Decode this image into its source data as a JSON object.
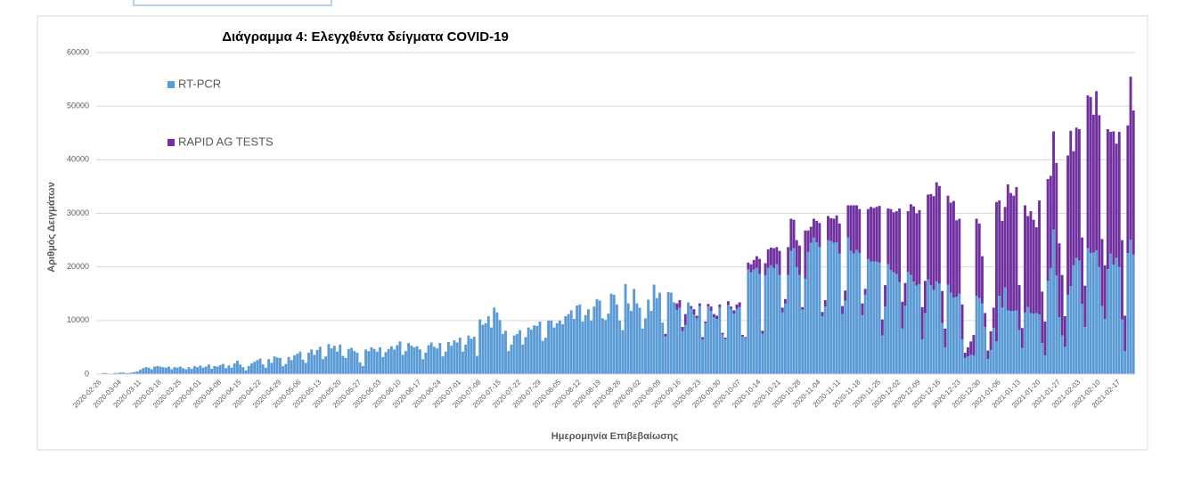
{
  "chart_data": {
    "type": "stacked_bar",
    "title": "Διάγραμμα 4: Ελεγχθέντα δείγματα COVID-19",
    "y_label": "Αριθμός Δειγμάτων",
    "x_label": "Ημερομηνία Επιβεβαίωσης",
    "ylim": [
      0,
      60000
    ],
    "yticks": [
      0,
      10000,
      20000,
      30000,
      40000,
      50000,
      60000
    ],
    "grid": true,
    "legend": "top-left",
    "categories": [
      "2020-02-26",
      null,
      null,
      null,
      null,
      null,
      null,
      "2020-03-04",
      null,
      null,
      null,
      null,
      null,
      null,
      "2020-03-11",
      null,
      null,
      null,
      null,
      null,
      null,
      "2020-03-18",
      null,
      null,
      null,
      null,
      null,
      null,
      "2020-03-25",
      null,
      null,
      null,
      null,
      null,
      null,
      "2020-04-01",
      null,
      null,
      null,
      null,
      null,
      null,
      "2020-04-08",
      null,
      null,
      null,
      null,
      null,
      null,
      "2020-04-15",
      null,
      null,
      null,
      null,
      null,
      null,
      "2020-04-22",
      null,
      null,
      null,
      null,
      null,
      null,
      "2020-04-29",
      null,
      null,
      null,
      null,
      null,
      null,
      "2020-05-06",
      null,
      null,
      null,
      null,
      null,
      null,
      "2020-05-13",
      null,
      null,
      null,
      null,
      null,
      null,
      "2020-05-20",
      null,
      null,
      null,
      null,
      null,
      null,
      "2020-05-27",
      null,
      null,
      null,
      null,
      null,
      null,
      "2020-06-03",
      null,
      null,
      null,
      null,
      null,
      null,
      "2020-06-10",
      null,
      null,
      null,
      null,
      null,
      null,
      "2020-06-17",
      null,
      null,
      null,
      null,
      null,
      null,
      "2020-06-24",
      null,
      null,
      null,
      null,
      null,
      null,
      "2020-07-01",
      null,
      null,
      null,
      null,
      null,
      null,
      "2020-07-08",
      null,
      null,
      null,
      null,
      null,
      null,
      "2020-07-15",
      null,
      null,
      null,
      null,
      null,
      null,
      "2020-07-22",
      null,
      null,
      null,
      null,
      null,
      null,
      "2020-07-29",
      null,
      null,
      null,
      null,
      null,
      null,
      "2020-08-05",
      null,
      null,
      null,
      null,
      null,
      null,
      "2020-08-12",
      null,
      null,
      null,
      null,
      null,
      null,
      "2020-08-19",
      null,
      null,
      null,
      null,
      null,
      null,
      "2020-08-26",
      null,
      null,
      null,
      null,
      null,
      null,
      "2020-09-02",
      null,
      null,
      null,
      null,
      null,
      null,
      "2020-09-09",
      null,
      null,
      null,
      null,
      null,
      null,
      "2020-09-16",
      null,
      null,
      null,
      null,
      null,
      null,
      "2020-09-23",
      null,
      null,
      null,
      null,
      null,
      null,
      "2020-09-30",
      null,
      null,
      null,
      null,
      null,
      null,
      "2020-10-07",
      null,
      null,
      null,
      null,
      null,
      null,
      "2020-10-14",
      null,
      null,
      null,
      null,
      null,
      null,
      "2020-10-21",
      null,
      null,
      null,
      null,
      null,
      null,
      "2020-10-28",
      null,
      null,
      null,
      null,
      null,
      null,
      "2020-11-04",
      null,
      null,
      null,
      null,
      null,
      null,
      "2020-11-11",
      null,
      null,
      null,
      null,
      null,
      null,
      "2020-11-18",
      null,
      null,
      null,
      null,
      null,
      null,
      "2020-11-25",
      null,
      null,
      null,
      null,
      null,
      null,
      "2020-12-02",
      null,
      null,
      null,
      null,
      null,
      null,
      "2020-12-09",
      null,
      null,
      null,
      null,
      null,
      null,
      "2020-12-16",
      null,
      null,
      null,
      null,
      null,
      null,
      "2020-12-23",
      null,
      null,
      null,
      null,
      null,
      null,
      "2020-12-30",
      null,
      null,
      null,
      null,
      null,
      null,
      "2021-01-06",
      null,
      null,
      null,
      null,
      null,
      null,
      "2021-01-13",
      null,
      null,
      null,
      null,
      null,
      null,
      "2021-01-20",
      null,
      null,
      null,
      null,
      null,
      null,
      "2021-01-27",
      null,
      null,
      null,
      null,
      null,
      null,
      "2021-02-03",
      null,
      null,
      null,
      null,
      null,
      null,
      "2021-02-10",
      null,
      null,
      null,
      null,
      null,
      null,
      "2021-02-17",
      null,
      null,
      null,
      null,
      null,
      null
    ],
    "series": [
      {
        "name": "RT-PCR",
        "color": "#5b9bd5",
        "values": [
          100,
          100,
          200,
          200,
          100,
          100,
          200,
          200,
          300,
          300,
          200,
          200,
          300,
          400,
          500,
          800,
          1100,
          1300,
          1200,
          900,
          1400,
          1500,
          1400,
          1300,
          1200,
          1400,
          900,
          1300,
          1200,
          1400,
          1100,
          900,
          1300,
          1000,
          1500,
          1300,
          1600,
          1200,
          1400,
          1800,
          1000,
          1500,
          1400,
          1700,
          1900,
          1100,
          1600,
          1200,
          2000,
          2500,
          1800,
          1300,
          700,
          1500,
          2000,
          2300,
          2600,
          2900,
          1800,
          1200,
          2800,
          2100,
          3300,
          3100,
          3000,
          1500,
          1900,
          3200,
          2600,
          3500,
          3800,
          4200,
          2700,
          2100,
          4000,
          4600,
          3600,
          4500,
          5100,
          2800,
          3300,
          5600,
          4800,
          5300,
          4200,
          5500,
          3400,
          3000,
          4700,
          4900,
          4300,
          4000,
          2200,
          1500,
          4600,
          4300,
          5000,
          4700,
          4200,
          5000,
          3200,
          4100,
          4700,
          5200,
          4600,
          5400,
          6100,
          3600,
          4300,
          5800,
          5300,
          5000,
          5200,
          4600,
          2800,
          4000,
          5400,
          5900,
          5100,
          4800,
          5800,
          3300,
          4200,
          6000,
          5300,
          6300,
          5900,
          6800,
          4200,
          5500,
          7200,
          6600,
          7000,
          3400,
          10200,
          9200,
          9500,
          10800,
          8700,
          12400,
          11500,
          10100,
          7500,
          8100,
          4300,
          5500,
          7200,
          7500,
          8200,
          5500,
          6900,
          8700,
          8300,
          9100,
          9000,
          9800,
          6200,
          6800,
          10000,
          10000,
          8700,
          9500,
          10000,
          9300,
          10800,
          11200,
          11900,
          10300,
          12800,
          13000,
          9800,
          11000,
          12100,
          10000,
          12600,
          14000,
          13700,
          10400,
          10100,
          11300,
          15000,
          14800,
          13000,
          10000,
          8200,
          16800,
          13200,
          11800,
          15900,
          13200,
          12400,
          8500,
          10400,
          13900,
          11800,
          16700,
          14200,
          15200,
          9600,
          7000,
          15300,
          15200,
          13400,
          12000,
          12400,
          8000,
          9200,
          13400,
          12200,
          11100,
          10400,
          12700,
          6500,
          9500,
          12600,
          11800,
          10600,
          10300,
          12500,
          7400,
          6500,
          12900,
          12200,
          11300,
          12200,
          12500,
          7000,
          6700,
          19500,
          19000,
          19500,
          19800,
          18700,
          7500,
          18400,
          19800,
          20300,
          19800,
          20500,
          18500,
          11500,
          13200,
          18500,
          23000,
          23500,
          20000,
          18500,
          12000,
          17800,
          22800,
          24500,
          25500,
          24600,
          23700,
          10800,
          12600,
          25000,
          24800,
          24500,
          24600,
          22500,
          11200,
          13700,
          25500,
          23000,
          22500,
          23200,
          22600,
          11000,
          14800,
          21500,
          21000,
          21000,
          21000,
          20800,
          7200,
          12600,
          20500,
          19400,
          19000,
          18700,
          17200,
          8500,
          12800,
          19100,
          18500,
          17300,
          16500,
          16800,
          6500,
          11400,
          17700,
          16600,
          15700,
          17300,
          16900,
          9500,
          5000,
          16700,
          15200,
          14300,
          14400,
          15000,
          6500,
          3000,
          3300,
          3600,
          3500,
          14600,
          14200,
          13200,
          8800,
          2800,
          4500,
          8600,
          6100,
          14600,
          12400,
          16200,
          11900,
          11800,
          11800,
          11900,
          8200,
          4900,
          11500,
          12500,
          11400,
          11300,
          11400,
          11100,
          5800,
          3500,
          17400,
          19800,
          27000,
          18400,
          10600,
          7200,
          5100,
          14800,
          16400,
          20300,
          21700,
          21200,
          13100,
          8800,
          23500,
          22600,
          22700,
          23100,
          20000,
          12700,
          10300,
          19600,
          22500,
          20400,
          21700,
          20000,
          10200,
          4300,
          22600,
          25100,
          22300
        ]
      },
      {
        "name": "RAPID AG TESTS",
        "color": "#7030a0",
        "values": [
          0,
          0,
          0,
          0,
          0,
          0,
          0,
          0,
          0,
          0,
          0,
          0,
          0,
          0,
          0,
          0,
          0,
          0,
          0,
          0,
          0,
          0,
          0,
          0,
          0,
          0,
          0,
          0,
          0,
          0,
          0,
          0,
          0,
          0,
          0,
          0,
          0,
          0,
          0,
          0,
          0,
          0,
          0,
          0,
          0,
          0,
          0,
          0,
          0,
          0,
          0,
          0,
          0,
          0,
          0,
          0,
          0,
          0,
          0,
          0,
          0,
          0,
          0,
          0,
          0,
          0,
          0,
          0,
          0,
          0,
          0,
          0,
          0,
          0,
          0,
          0,
          0,
          0,
          0,
          0,
          0,
          0,
          0,
          0,
          0,
          0,
          0,
          0,
          0,
          0,
          0,
          0,
          0,
          0,
          0,
          0,
          0,
          0,
          0,
          0,
          0,
          0,
          0,
          0,
          0,
          0,
          0,
          0,
          0,
          0,
          0,
          0,
          0,
          0,
          0,
          0,
          0,
          0,
          0,
          0,
          0,
          0,
          0,
          0,
          0,
          0,
          0,
          0,
          0,
          0,
          0,
          0,
          0,
          0,
          0,
          0,
          0,
          0,
          0,
          0,
          0,
          0,
          0,
          0,
          0,
          0,
          0,
          0,
          0,
          0,
          0,
          0,
          0,
          0,
          0,
          0,
          0,
          0,
          0,
          0,
          0,
          0,
          0,
          0,
          0,
          0,
          0,
          0,
          0,
          0,
          0,
          0,
          0,
          0,
          0,
          0,
          0,
          0,
          0,
          0,
          0,
          0,
          0,
          0,
          0,
          0,
          0,
          0,
          0,
          0,
          0,
          0,
          0,
          0,
          0,
          0,
          0,
          0,
          0,
          500,
          0,
          0,
          0,
          1200,
          1400,
          800,
          2000,
          0,
          500,
          1000,
          500,
          500,
          400,
          300,
          500,
          800,
          600,
          600,
          500,
          300,
          300,
          700,
          400,
          600,
          800,
          900,
          300,
          200,
          1300,
          1500,
          1800,
          2200,
          2800,
          600,
          2300,
          3500,
          3300,
          3700,
          3200,
          4500,
          900,
          800,
          5200,
          6000,
          5300,
          5000,
          5500,
          500,
          9000,
          4000,
          3000,
          3500,
          4000,
          4500,
          800,
          1200,
          4500,
          4300,
          4500,
          5000,
          5600,
          1500,
          1900,
          6000,
          8500,
          9000,
          8300,
          8200,
          2200,
          1100,
          9300,
          10200,
          10000,
          10200,
          10600,
          3000,
          4000,
          10400,
          11400,
          11200,
          11700,
          13700,
          5000,
          4200,
          11300,
          13200,
          14000,
          13500,
          13800,
          6000,
          6000,
          15800,
          17000,
          17500,
          18500,
          18200,
          6000,
          3500,
          16600,
          16800,
          18000,
          14300,
          14000,
          6500,
          1000,
          1700,
          2500,
          3800,
          14400,
          13900,
          8800,
          2600,
          1600,
          3500,
          3800,
          26000,
          17800,
          16200,
          15000,
          23500,
          22000,
          21500,
          23000,
          8400,
          3700,
          20000,
          17000,
          19000,
          17500,
          16000,
          21300,
          9600,
          6300,
          19000,
          17200,
          18300,
          21000,
          13800,
          11300,
          5700,
          26000,
          29000,
          21300,
          24300,
          24500,
          12400,
          7700,
          28500,
          29100,
          25700,
          29700,
          28300,
          12500,
          10000,
          26100,
          22700,
          24900,
          21300,
          25200,
          14800,
          6600,
          23800,
          30400,
          26900
        ]
      }
    ]
  }
}
